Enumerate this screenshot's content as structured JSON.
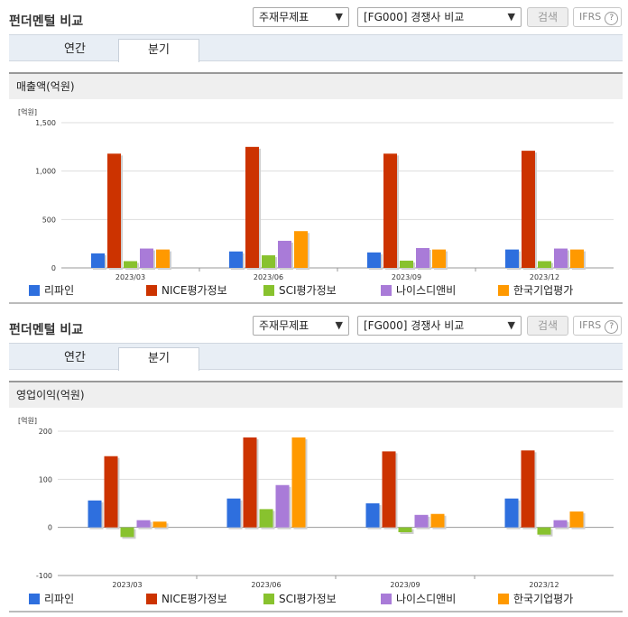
{
  "sections": [
    {
      "title": "펀더멘털 비교",
      "select1": "주재무제표",
      "select2": "[FG000] 경쟁사 비교",
      "search_label": "검색",
      "ifrs_label": "IFRS",
      "help_glyph": "?",
      "tabs": [
        "연간",
        "분기"
      ],
      "active_tab": "분기",
      "chart_title": "매출액(억원)",
      "unit": "[억원]"
    },
    {
      "title": "펀더멘털 비교",
      "select1": "주재무제표",
      "select2": "[FG000] 경쟁사 비교",
      "search_label": "검색",
      "ifrs_label": "IFRS",
      "help_glyph": "?",
      "tabs": [
        "연간",
        "분기"
      ],
      "active_tab": "분기",
      "chart_title": "영업이익(억원)",
      "unit": "[억원]"
    }
  ],
  "chart_data": [
    {
      "type": "bar",
      "title": "매출액(억원)",
      "ylabel": "[억원]",
      "categories": [
        "2023/03",
        "2023/06",
        "2023/09",
        "2023/12"
      ],
      "ylim": [
        0,
        1500
      ],
      "yticks": [
        0,
        500,
        1000,
        1500
      ],
      "ytick_labels": [
        "0",
        "500",
        "1,000",
        "1,500"
      ],
      "series": [
        {
          "name": "리파인",
          "color": "#2e6fde",
          "values": [
            150,
            170,
            160,
            190
          ]
        },
        {
          "name": "NICE평가정보",
          "color": "#cc3300",
          "values": [
            1180,
            1250,
            1180,
            1210
          ]
        },
        {
          "name": "SCI평가정보",
          "color": "#88c22e",
          "values": [
            70,
            130,
            75,
            70
          ]
        },
        {
          "name": "나이스디앤비",
          "color": "#a97bd8",
          "values": [
            200,
            280,
            205,
            200
          ]
        },
        {
          "name": "한국기업평가",
          "color": "#ff9900",
          "values": [
            190,
            380,
            190,
            190
          ]
        }
      ]
    },
    {
      "type": "bar",
      "title": "영업이익(억원)",
      "ylabel": "[억원]",
      "categories": [
        "2023/03",
        "2023/06",
        "2023/09",
        "2023/12"
      ],
      "ylim": [
        -100,
        200
      ],
      "yticks": [
        -100,
        0,
        100,
        200
      ],
      "ytick_labels": [
        "-100",
        "0",
        "100",
        "200"
      ],
      "series": [
        {
          "name": "리파인",
          "color": "#2e6fde",
          "values": [
            56,
            60,
            50,
            60
          ]
        },
        {
          "name": "NICE평가정보",
          "color": "#cc3300",
          "values": [
            148,
            187,
            158,
            160
          ]
        },
        {
          "name": "SCI평가정보",
          "color": "#88c22e",
          "values": [
            -20,
            38,
            -10,
            -15
          ]
        },
        {
          "name": "나이스디앤비",
          "color": "#a97bd8",
          "values": [
            15,
            88,
            26,
            15
          ]
        },
        {
          "name": "한국기업평가",
          "color": "#ff9900",
          "values": [
            12,
            187,
            28,
            33
          ]
        }
      ]
    }
  ]
}
